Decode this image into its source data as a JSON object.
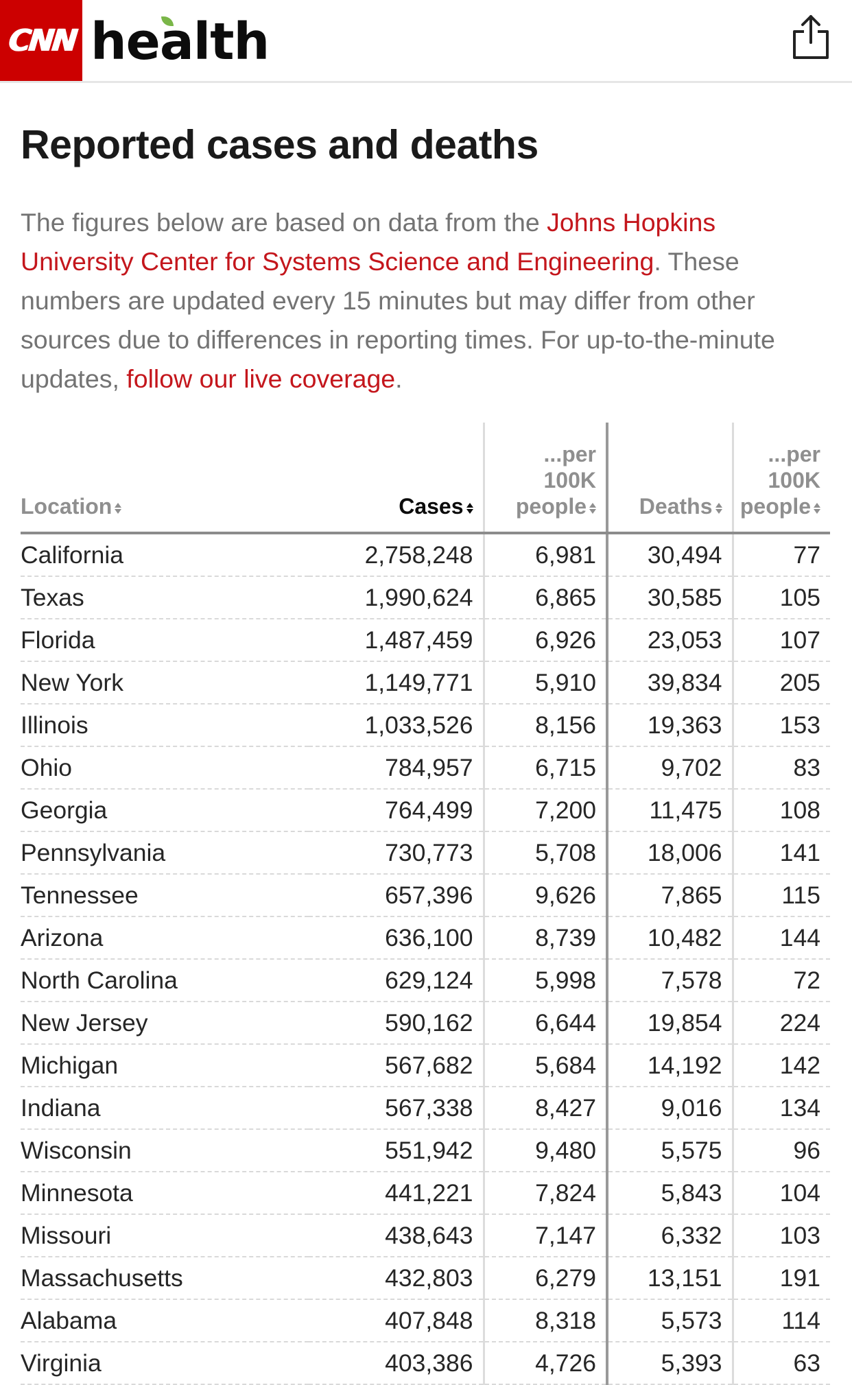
{
  "header": {
    "logo_text": "CNN",
    "section_text": "health",
    "share_icon": "share-icon"
  },
  "page": {
    "title": "Reported cases and deaths",
    "intro_text_1": "The figures below are based on data from the ",
    "intro_link_1": "Johns Hopkins University Center for Systems Science and Engineering",
    "intro_text_2": ". These numbers are updated every 15 minutes but may differ from other sources due to differences in reporting times. For up-to-the-minute updates, ",
    "intro_link_2": "follow our live coverage",
    "intro_text_3": "."
  },
  "table": {
    "columns": {
      "location": "Location",
      "cases": "Cases",
      "cases_per_1": "...per",
      "cases_per_2": "100K",
      "cases_per_3": "people",
      "deaths": "Deaths",
      "deaths_per_1": "...per",
      "deaths_per_2": "100K",
      "deaths_per_3": "people"
    },
    "rows": [
      {
        "location": "California",
        "cases": "2,758,248",
        "cases_per": "6,981",
        "deaths": "30,494",
        "deaths_per": "77"
      },
      {
        "location": "Texas",
        "cases": "1,990,624",
        "cases_per": "6,865",
        "deaths": "30,585",
        "deaths_per": "105"
      },
      {
        "location": "Florida",
        "cases": "1,487,459",
        "cases_per": "6,926",
        "deaths": "23,053",
        "deaths_per": "107"
      },
      {
        "location": "New York",
        "cases": "1,149,771",
        "cases_per": "5,910",
        "deaths": "39,834",
        "deaths_per": "205"
      },
      {
        "location": "Illinois",
        "cases": "1,033,526",
        "cases_per": "8,156",
        "deaths": "19,363",
        "deaths_per": "153"
      },
      {
        "location": "Ohio",
        "cases": "784,957",
        "cases_per": "6,715",
        "deaths": "9,702",
        "deaths_per": "83"
      },
      {
        "location": "Georgia",
        "cases": "764,499",
        "cases_per": "7,200",
        "deaths": "11,475",
        "deaths_per": "108"
      },
      {
        "location": "Pennsylvania",
        "cases": "730,773",
        "cases_per": "5,708",
        "deaths": "18,006",
        "deaths_per": "141"
      },
      {
        "location": "Tennessee",
        "cases": "657,396",
        "cases_per": "9,626",
        "deaths": "7,865",
        "deaths_per": "115"
      },
      {
        "location": "Arizona",
        "cases": "636,100",
        "cases_per": "8,739",
        "deaths": "10,482",
        "deaths_per": "144"
      },
      {
        "location": "North Carolina",
        "cases": "629,124",
        "cases_per": "5,998",
        "deaths": "7,578",
        "deaths_per": "72"
      },
      {
        "location": "New Jersey",
        "cases": "590,162",
        "cases_per": "6,644",
        "deaths": "19,854",
        "deaths_per": "224"
      },
      {
        "location": "Michigan",
        "cases": "567,682",
        "cases_per": "5,684",
        "deaths": "14,192",
        "deaths_per": "142"
      },
      {
        "location": "Indiana",
        "cases": "567,338",
        "cases_per": "8,427",
        "deaths": "9,016",
        "deaths_per": "134"
      },
      {
        "location": "Wisconsin",
        "cases": "551,942",
        "cases_per": "9,480",
        "deaths": "5,575",
        "deaths_per": "96"
      },
      {
        "location": "Minnesota",
        "cases": "441,221",
        "cases_per": "7,824",
        "deaths": "5,843",
        "deaths_per": "104"
      },
      {
        "location": "Missouri",
        "cases": "438,643",
        "cases_per": "7,147",
        "deaths": "6,332",
        "deaths_per": "103"
      },
      {
        "location": "Massachusetts",
        "cases": "432,803",
        "cases_per": "6,279",
        "deaths": "13,151",
        "deaths_per": "191"
      },
      {
        "location": "Alabama",
        "cases": "407,848",
        "cases_per": "8,318",
        "deaths": "5,573",
        "deaths_per": "114"
      },
      {
        "location": "Virginia",
        "cases": "403,386",
        "cases_per": "4,726",
        "deaths": "5,393",
        "deaths_per": "63"
      }
    ]
  },
  "colors": {
    "brand_red": "#cc0000",
    "link_red": "#c4161c",
    "muted_text": "#737373",
    "leaf_green": "#7ab648"
  }
}
